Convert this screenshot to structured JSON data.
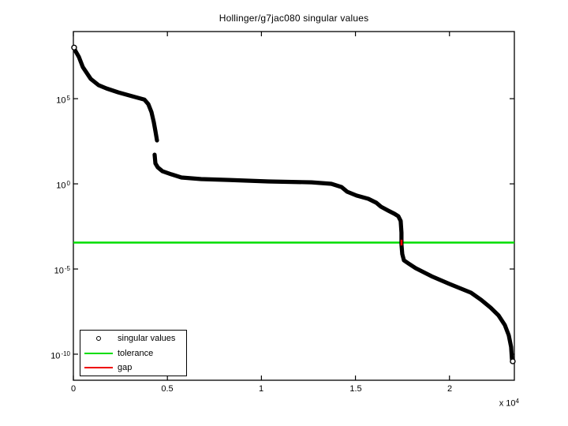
{
  "chart_data": {
    "type": "scatter",
    "title": "Hollinger/g7jac080 singular values",
    "x_axis": {
      "lim": [
        0,
        23450
      ],
      "ticks": [
        {
          "value": 0,
          "label": "0"
        },
        {
          "value": 5000,
          "label": "0.5"
        },
        {
          "value": 10000,
          "label": "1"
        },
        {
          "value": 15000,
          "label": "1.5"
        },
        {
          "value": 20000,
          "label": "2"
        }
      ],
      "multiplier": {
        "base": "x 10",
        "exp": "4"
      }
    },
    "y_axis": {
      "scale": "log10",
      "log_lim": [
        -11.53,
        8.94
      ],
      "ticks": [
        {
          "log_value": 5,
          "base": "10",
          "exp": "5"
        },
        {
          "log_value": 0,
          "base": "10",
          "exp": "0"
        },
        {
          "log_value": -5,
          "base": "10",
          "exp": "-5"
        },
        {
          "log_value": -10,
          "base": "10",
          "exp": "-10"
        }
      ]
    },
    "series": [
      {
        "name": "singular values",
        "color": "#000000",
        "marker": "open-circle",
        "points_format": [
          "index",
          "log10_sigma"
        ],
        "segments": [
          [
            [
              40,
              8.0
            ],
            [
              100,
              7.82
            ],
            [
              294,
              7.45
            ],
            [
              503,
              6.85
            ],
            [
              923,
              6.16
            ],
            [
              1342,
              5.79
            ],
            [
              1762,
              5.6
            ],
            [
              2391,
              5.37
            ],
            [
              3146,
              5.14
            ],
            [
              3775,
              4.95
            ],
            [
              3985,
              4.68
            ],
            [
              4153,
              4.21
            ],
            [
              4278,
              3.61
            ],
            [
              4362,
              3.1
            ],
            [
              4446,
              2.55
            ]
          ],
          [
            [
              4320,
              1.71
            ],
            [
              4362,
              1.2
            ],
            [
              4488,
              0.97
            ],
            [
              4740,
              0.74
            ],
            [
              5201,
              0.56
            ],
            [
              5747,
              0.37
            ],
            [
              6795,
              0.28
            ],
            [
              8263,
              0.23
            ],
            [
              10360,
              0.14
            ],
            [
              12667,
              0.09
            ],
            [
              13716,
              0.0
            ],
            [
              14261,
              -0.19
            ],
            [
              14555,
              -0.46
            ],
            [
              15058,
              -0.69
            ],
            [
              15687,
              -0.88
            ],
            [
              16107,
              -1.11
            ],
            [
              16358,
              -1.34
            ],
            [
              16736,
              -1.57
            ],
            [
              17072,
              -1.76
            ],
            [
              17281,
              -1.9
            ],
            [
              17407,
              -2.18
            ],
            [
              17449,
              -2.87
            ],
            [
              17449,
              -3.56
            ],
            [
              17491,
              -4.12
            ],
            [
              17575,
              -4.49
            ],
            [
              17827,
              -4.68
            ],
            [
              18204,
              -4.95
            ],
            [
              19043,
              -5.42
            ],
            [
              20008,
              -5.88
            ],
            [
              21141,
              -6.39
            ],
            [
              21686,
              -6.81
            ],
            [
              22189,
              -7.27
            ],
            [
              22609,
              -7.73
            ],
            [
              22944,
              -8.29
            ],
            [
              23154,
              -8.89
            ],
            [
              23280,
              -9.58
            ],
            [
              23322,
              -10.28
            ],
            [
              23364,
              -10.42
            ]
          ]
        ],
        "endpoint_markers": [
          [
            40,
            8.0
          ],
          [
            23364,
            -10.42
          ]
        ]
      },
      {
        "name": "tolerance",
        "color": "#00dd00",
        "type": "hline",
        "log10_value": -3.45
      },
      {
        "name": "gap",
        "color": "#ee0000",
        "type": "vsegment",
        "x": 17449,
        "log10_from": -3.28,
        "log10_to": -3.62
      }
    ],
    "legend": {
      "position": "southwest",
      "items": [
        {
          "label": "singular values",
          "swatch": "open-circle",
          "color": "#000000"
        },
        {
          "label": "tolerance",
          "swatch": "line",
          "color": "#00dd00"
        },
        {
          "label": "gap",
          "swatch": "line",
          "color": "#ee0000"
        }
      ]
    },
    "grid": false,
    "box": true,
    "tick_direction": "in"
  }
}
